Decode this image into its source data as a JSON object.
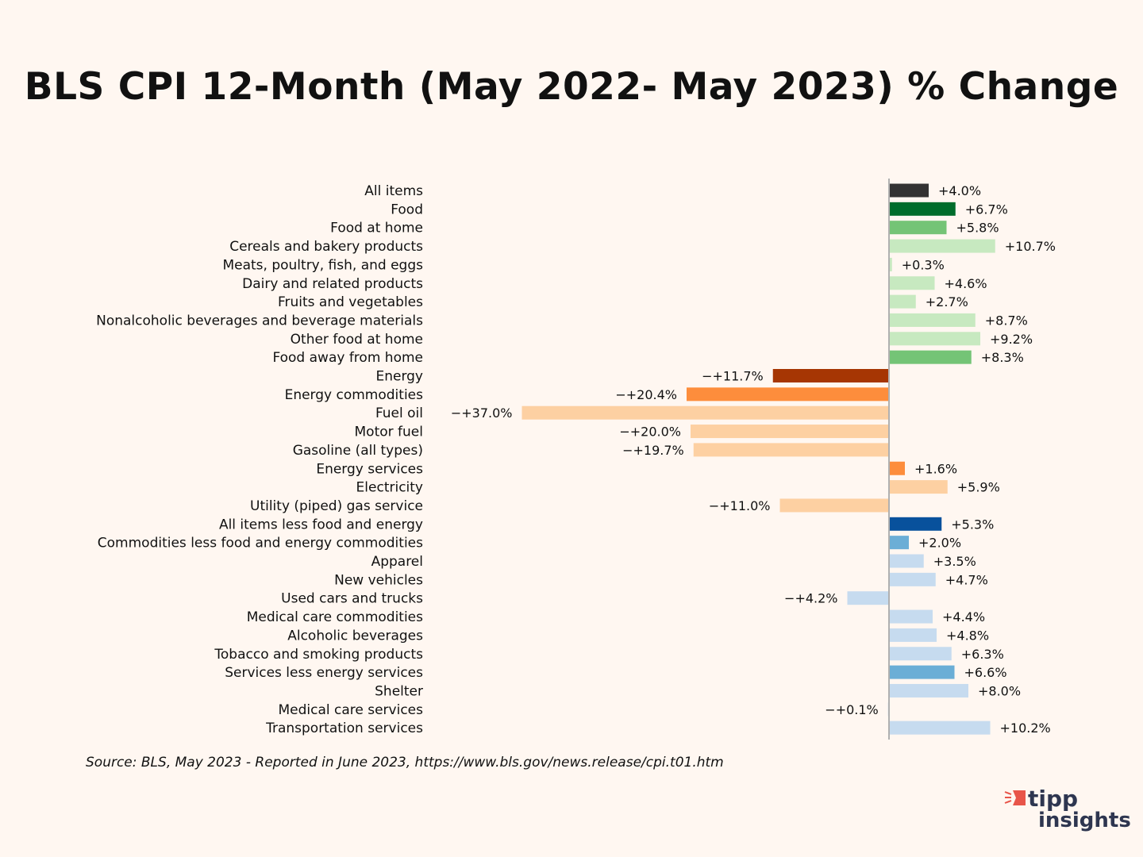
{
  "chart_data": {
    "type": "bar",
    "orientation": "horizontal",
    "title": "BLS CPI 12-Month (May 2022- May 2023) % Change",
    "xlabel": "",
    "ylabel": "",
    "xlim": [
      -37,
      17
    ],
    "grid": false,
    "categories": [
      "All items",
      "Food",
      "Food at home",
      "Cereals and bakery products",
      "Meats, poultry, fish, and eggs",
      "Dairy and related products",
      "Fruits and vegetables",
      "Nonalcoholic beverages and beverage materials",
      "Other food at home",
      "Food away from home",
      "Energy",
      "Energy commodities",
      "Fuel oil",
      "Motor fuel",
      "Gasoline (all types)",
      "Energy services",
      "Electricity",
      "Utility (piped) gas service",
      "All items less food and energy",
      "Commodities less food and energy commodities",
      "Apparel",
      "New vehicles",
      "Used cars and trucks",
      "Medical care commodities",
      "Alcoholic beverages",
      "Tobacco and smoking products",
      "Services less energy services",
      "Shelter",
      "Medical care services",
      "Transportation services"
    ],
    "values": [
      4.0,
      6.7,
      5.8,
      10.7,
      0.3,
      4.6,
      2.7,
      8.7,
      9.2,
      8.3,
      -11.7,
      -20.4,
      -37.0,
      -20.0,
      -19.7,
      1.6,
      5.9,
      -11.0,
      5.3,
      2.0,
      3.5,
      4.7,
      -4.2,
      4.4,
      4.8,
      6.3,
      6.6,
      8.0,
      -0.1,
      10.2
    ],
    "data_labels": [
      "+4.0%",
      "+6.7%",
      "+5.8%",
      "+10.7%",
      "+0.3%",
      "+4.6%",
      "+2.7%",
      "+8.7%",
      "+9.2%",
      "+8.3%",
      "−+11.7%",
      "−+20.4%",
      "−+37.0%",
      "−+20.0%",
      "−+19.7%",
      "+1.6%",
      "+5.9%",
      "−+11.0%",
      "+5.3%",
      "+2.0%",
      "+3.5%",
      "+4.7%",
      "−+4.2%",
      "+4.4%",
      "+4.8%",
      "+6.3%",
      "+6.6%",
      "+8.0%",
      "−+0.1%",
      "+10.2%"
    ],
    "colors": [
      "#333333",
      "#006d2c",
      "#74c476",
      "#c7e9c0",
      "#c7e9c0",
      "#c7e9c0",
      "#c7e9c0",
      "#c7e9c0",
      "#c7e9c0",
      "#74c476",
      "#a63603",
      "#fd8d3c",
      "#fdd0a2",
      "#fdd0a2",
      "#fdd0a2",
      "#fd8d3c",
      "#fdd0a2",
      "#fdd0a2",
      "#08519c",
      "#6baed6",
      "#c6dbef",
      "#c6dbef",
      "#c6dbef",
      "#c6dbef",
      "#c6dbef",
      "#c6dbef",
      "#6baed6",
      "#c6dbef",
      "#c6dbef",
      "#c6dbef"
    ]
  },
  "source": "Source:  BLS, May 2023 - Reported in June 2023, https://www.bls.gov/news.release/cpi.t01.htm",
  "logo": {
    "line1": "tipp",
    "line2": "insights",
    "accent": "#e8554a",
    "text_color": "#2e3650"
  }
}
